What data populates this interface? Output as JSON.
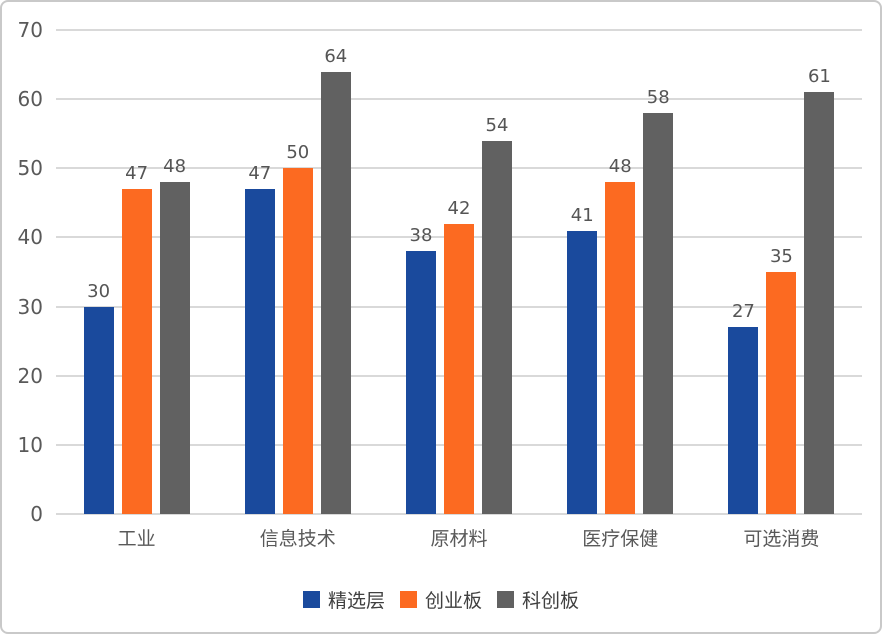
{
  "chart_data": {
    "type": "bar",
    "title": "",
    "categories": [
      "工业",
      "信息技术",
      "原材料",
      "医疗保健",
      "可选消费"
    ],
    "series": [
      {
        "name": "精选层",
        "color": "#1A4A9D",
        "values": [
          30,
          47,
          38,
          41,
          27
        ]
      },
      {
        "name": "创业板",
        "color": "#FC6A21",
        "values": [
          47,
          50,
          42,
          48,
          35
        ]
      },
      {
        "name": "科创板",
        "color": "#616161",
        "values": [
          48,
          64,
          54,
          58,
          61
        ]
      }
    ],
    "xlabel": "",
    "ylabel": "",
    "ylim": [
      0,
      70
    ],
    "ytick_interval": 10,
    "yticks": [
      0,
      10,
      20,
      30,
      40,
      50,
      60,
      70
    ],
    "grid": true,
    "bar_value_labels": true,
    "legend_position": "bottom"
  }
}
